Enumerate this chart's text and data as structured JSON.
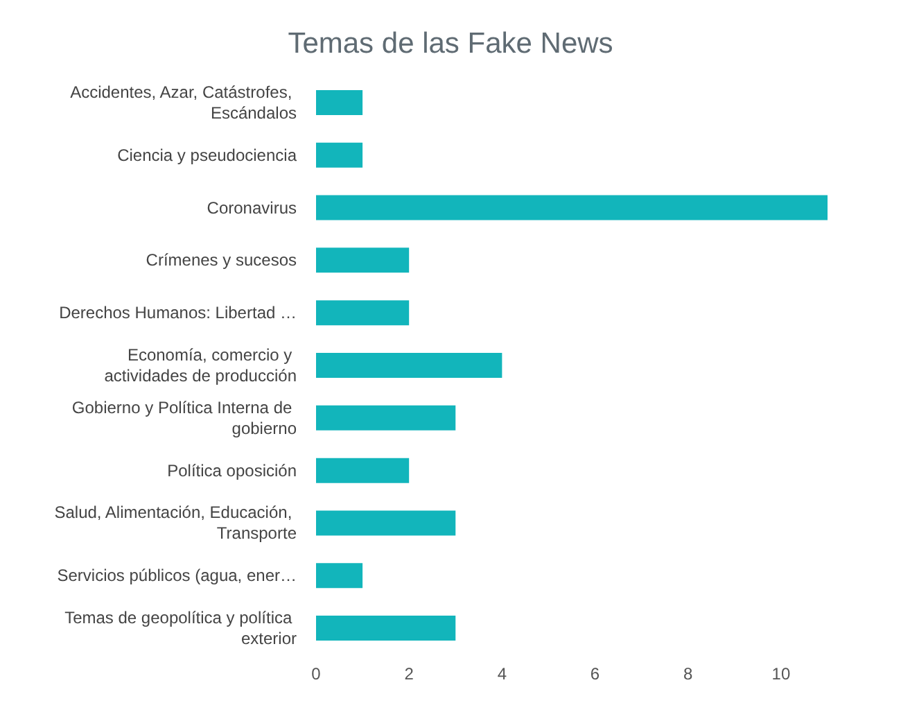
{
  "chart_data": {
    "type": "bar",
    "orientation": "horizontal",
    "title": "Temas de las Fake News",
    "categories": [
      "Accidentes, Azar, Catástrofes, Escándalos",
      "Ciencia y pseudociencia",
      "Coronavirus",
      "Crímenes y sucesos",
      "Derechos Humanos: Libertad …",
      "Economía, comercio y actividades de producción",
      "Gobierno y Política Interna de gobierno",
      "Política oposición",
      "Salud, Alimentación, Educación, Transporte",
      "Servicios públicos (agua, ener…",
      "Temas de geopolítica y política exterior"
    ],
    "values": [
      1,
      1,
      11,
      2,
      2,
      4,
      3,
      2,
      3,
      1,
      3
    ],
    "color": "#12b5bb",
    "xlim": [
      0,
      11
    ],
    "xticks": [
      0,
      2,
      4,
      6,
      8,
      10
    ],
    "grid": false
  }
}
